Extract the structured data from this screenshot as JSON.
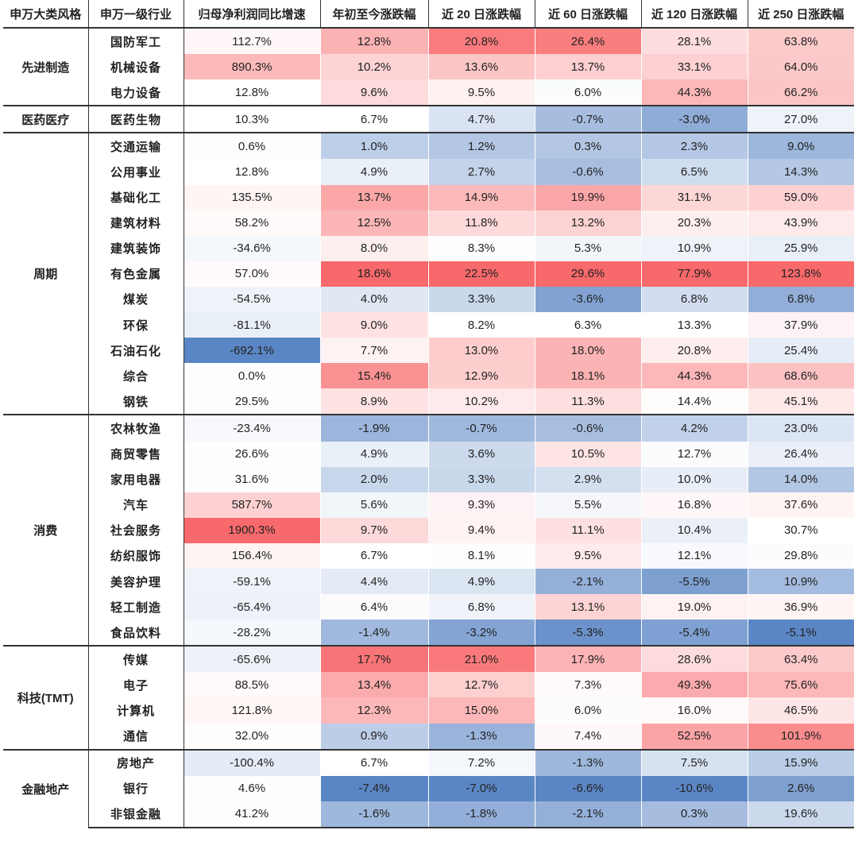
{
  "chart_data": {
    "type": "table",
    "title": "",
    "headers": [
      "申万大类风格",
      "申万一级行业",
      "归母净利润同比增速",
      "年初至今涨跌幅",
      "近 20 日涨跌幅",
      "近 60 日涨跌幅",
      "近 120 日涨跌幅",
      "近 250 日涨跌幅"
    ],
    "groups": [
      {
        "name": "先进制造",
        "rows": [
          {
            "industry": "国防军工",
            "values": [
              "112.7%",
              "12.8%",
              "20.8%",
              "26.4%",
              "28.1%",
              "63.8%"
            ]
          },
          {
            "industry": "机械设备",
            "values": [
              "890.3%",
              "10.2%",
              "13.6%",
              "13.7%",
              "33.1%",
              "64.0%"
            ]
          },
          {
            "industry": "电力设备",
            "values": [
              "12.8%",
              "9.6%",
              "9.5%",
              "6.0%",
              "44.3%",
              "66.2%"
            ]
          }
        ]
      },
      {
        "name": "医药医疗",
        "rows": [
          {
            "industry": "医药生物",
            "values": [
              "10.3%",
              "6.7%",
              "4.7%",
              "-0.7%",
              "-3.0%",
              "27.0%"
            ]
          }
        ]
      },
      {
        "name": "周期",
        "rows": [
          {
            "industry": "交通运输",
            "values": [
              "0.6%",
              "1.0%",
              "1.2%",
              "0.3%",
              "2.3%",
              "9.0%"
            ]
          },
          {
            "industry": "公用事业",
            "values": [
              "12.8%",
              "4.9%",
              "2.7%",
              "-0.6%",
              "6.5%",
              "14.3%"
            ]
          },
          {
            "industry": "基础化工",
            "values": [
              "135.5%",
              "13.7%",
              "14.9%",
              "19.9%",
              "31.1%",
              "59.0%"
            ]
          },
          {
            "industry": "建筑材料",
            "values": [
              "58.2%",
              "12.5%",
              "11.8%",
              "13.2%",
              "20.3%",
              "43.9%"
            ]
          },
          {
            "industry": "建筑装饰",
            "values": [
              "-34.6%",
              "8.0%",
              "8.3%",
              "5.3%",
              "10.9%",
              "25.9%"
            ]
          },
          {
            "industry": "有色金属",
            "values": [
              "57.0%",
              "18.6%",
              "22.5%",
              "29.6%",
              "77.9%",
              "123.8%"
            ]
          },
          {
            "industry": "煤炭",
            "values": [
              "-54.5%",
              "4.0%",
              "3.3%",
              "-3.6%",
              "6.8%",
              "6.8%"
            ]
          },
          {
            "industry": "环保",
            "values": [
              "-81.1%",
              "9.0%",
              "8.2%",
              "6.3%",
              "13.3%",
              "37.9%"
            ]
          },
          {
            "industry": "石油石化",
            "values": [
              "-692.1%",
              "7.7%",
              "13.0%",
              "18.0%",
              "20.8%",
              "25.4%"
            ]
          },
          {
            "industry": "综合",
            "values": [
              "0.0%",
              "15.4%",
              "12.9%",
              "18.1%",
              "44.3%",
              "68.6%"
            ]
          },
          {
            "industry": "钢铁",
            "values": [
              "29.5%",
              "8.9%",
              "10.2%",
              "11.3%",
              "14.4%",
              "45.1%"
            ]
          }
        ]
      },
      {
        "name": "消费",
        "rows": [
          {
            "industry": "农林牧渔",
            "values": [
              "-23.4%",
              "-1.9%",
              "-0.7%",
              "-0.6%",
              "4.2%",
              "23.0%"
            ]
          },
          {
            "industry": "商贸零售",
            "values": [
              "26.6%",
              "4.9%",
              "3.6%",
              "10.5%",
              "12.7%",
              "26.4%"
            ]
          },
          {
            "industry": "家用电器",
            "values": [
              "31.6%",
              "2.0%",
              "3.3%",
              "2.9%",
              "10.0%",
              "14.0%"
            ]
          },
          {
            "industry": "汽车",
            "values": [
              "587.7%",
              "5.6%",
              "9.3%",
              "5.5%",
              "16.8%",
              "37.6%"
            ]
          },
          {
            "industry": "社会服务",
            "values": [
              "1900.3%",
              "9.7%",
              "9.4%",
              "11.1%",
              "10.4%",
              "30.7%"
            ]
          },
          {
            "industry": "纺织服饰",
            "values": [
              "156.4%",
              "6.7%",
              "8.1%",
              "9.5%",
              "12.1%",
              "29.8%"
            ]
          },
          {
            "industry": "美容护理",
            "values": [
              "-59.1%",
              "4.4%",
              "4.9%",
              "-2.1%",
              "-5.5%",
              "10.9%"
            ]
          },
          {
            "industry": "轻工制造",
            "values": [
              "-65.4%",
              "6.4%",
              "6.8%",
              "13.1%",
              "19.0%",
              "36.9%"
            ]
          },
          {
            "industry": "食品饮料",
            "values": [
              "-28.2%",
              "-1.4%",
              "-3.2%",
              "-5.3%",
              "-5.4%",
              "-5.1%"
            ]
          }
        ]
      },
      {
        "name": "科技(TMT)",
        "rows": [
          {
            "industry": "传媒",
            "values": [
              "-65.6%",
              "17.7%",
              "21.0%",
              "17.9%",
              "28.6%",
              "63.4%"
            ]
          },
          {
            "industry": "电子",
            "values": [
              "88.5%",
              "13.4%",
              "12.7%",
              "7.3%",
              "49.3%",
              "75.6%"
            ]
          },
          {
            "industry": "计算机",
            "values": [
              "121.8%",
              "12.3%",
              "15.0%",
              "6.0%",
              "16.0%",
              "46.5%"
            ]
          },
          {
            "industry": "通信",
            "values": [
              "32.0%",
              "0.9%",
              "-1.3%",
              "7.4%",
              "52.5%",
              "101.9%"
            ]
          }
        ]
      },
      {
        "name": "金融地产",
        "rows": [
          {
            "industry": "房地产",
            "values": [
              "-100.4%",
              "6.7%",
              "7.2%",
              "-1.3%",
              "7.5%",
              "15.9%"
            ]
          },
          {
            "industry": "银行",
            "values": [
              "4.6%",
              "-7.4%",
              "-7.0%",
              "-6.6%",
              "-10.6%",
              "2.6%"
            ]
          },
          {
            "industry": "非银金融",
            "values": [
              "41.2%",
              "-1.6%",
              "-1.8%",
              "-2.1%",
              "0.3%",
              "19.6%"
            ]
          }
        ]
      }
    ],
    "heatmap_colors": {
      "low": "#5b86c5",
      "mid": "#ffffff",
      "high": "#f8696b"
    }
  }
}
